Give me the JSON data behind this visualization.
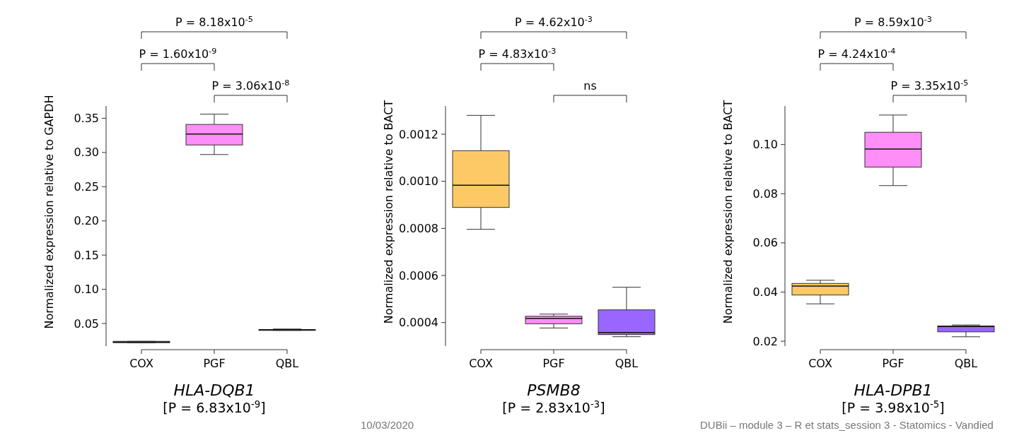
{
  "chart_data": [
    {
      "type": "box",
      "title": "HLA-DQB1",
      "subtitle": "[P = 6.83x10$^{-9}$]",
      "ylabel": "Normalized expression relative to GAPDH",
      "categories": [
        "COX",
        "PGF",
        "QBL"
      ],
      "colors": [
        "#fdc966",
        "#ff8ef7",
        "#9966ff"
      ],
      "ylim": [
        0.017,
        0.368
      ],
      "yticks": [
        0.05,
        {
          "value": 0.1,
          "label": "0.10"
        },
        0.15,
        {
          "value": 0.2,
          "label": "0.20"
        },
        0.25,
        {
          "value": 0.3,
          "label": "0.30"
        },
        0.35
      ],
      "boxes": [
        {
          "low": 0.022,
          "q1": 0.022,
          "median": 0.023,
          "q3": 0.024,
          "high": 0.024
        },
        {
          "low": 0.297,
          "q1": 0.311,
          "median": 0.327,
          "q3": 0.341,
          "high": 0.356
        },
        {
          "low": 0.04,
          "q1": 0.04,
          "median": 0.041,
          "q3": 0.041,
          "high": 0.042
        }
      ],
      "annotations": [
        "P = 8.18x10$^{-5}$",
        "P = 1.60x10$^{-9}$",
        "P = 3.06x10$^{-8}$"
      ]
    },
    {
      "type": "box",
      "title": "PSMB8",
      "subtitle": "[P = 2.83x10$^{-3}$]",
      "ylabel": "Normalized expression relative to BACT",
      "categories": [
        "COX",
        "PGF",
        "QBL"
      ],
      "colors": [
        "#fdc966",
        "#ff8ef7",
        "#9966ff"
      ],
      "ylim": [
        0.0003,
        0.00132
      ],
      "yticks": [
        0.0004,
        0.0006,
        0.0008,
        {
          "value": 0.001,
          "label": "0.0010"
        },
        0.0012
      ],
      "boxes": [
        {
          "low": 0.000796,
          "q1": 0.000889,
          "median": 0.000983,
          "q3": 0.00113,
          "high": 0.00128
        },
        {
          "low": 0.000377,
          "q1": 0.000395,
          "median": 0.000418,
          "q3": 0.000427,
          "high": 0.000436
        },
        {
          "low": 0.00034,
          "q1": 0.000349,
          "median": 0.000358,
          "q3": 0.000454,
          "high": 0.00055
        }
      ],
      "annotations": [
        "P = 4.62x10$^{-3}$",
        "P = 4.83x10$^{-3}$",
        "ns",
        "10/03/2020"
      ]
    },
    {
      "type": "box",
      "title": "HLA-DPB1",
      "subtitle": "[P = 3.98x10$^{-5}$]",
      "ylabel": "Normalized expression relative to BACT",
      "categories": [
        "COX",
        "PGF",
        "QBL"
      ],
      "colors": [
        "#fdc966",
        "#ff8ef7",
        "#9966ff"
      ],
      "ylim": [
        0.018,
        0.1157
      ],
      "yticks": [
        0.02,
        0.04,
        0.06,
        0.08,
        {
          "value": 0.1,
          "label": "0.10"
        }
      ],
      "boxes": [
        {
          "low": 0.0352,
          "q1": 0.0388,
          "median": 0.0424,
          "q3": 0.0435,
          "high": 0.0448
        },
        {
          "low": 0.0833,
          "q1": 0.0908,
          "median": 0.0982,
          "q3": 0.105,
          "high": 0.112
        },
        {
          "low": 0.0218,
          "q1": 0.0238,
          "median": 0.026,
          "q3": 0.0262,
          "high": 0.0266
        }
      ],
      "annotations": [
        "P = 8.59x10$^{-3}$",
        "P = 4.24x10$^{-4}$",
        "P = 3.35x10$^{-5}$",
        "DUBii – module 3 – R et stats_session 3 - Statomics - Vandied"
      ]
    }
  ]
}
